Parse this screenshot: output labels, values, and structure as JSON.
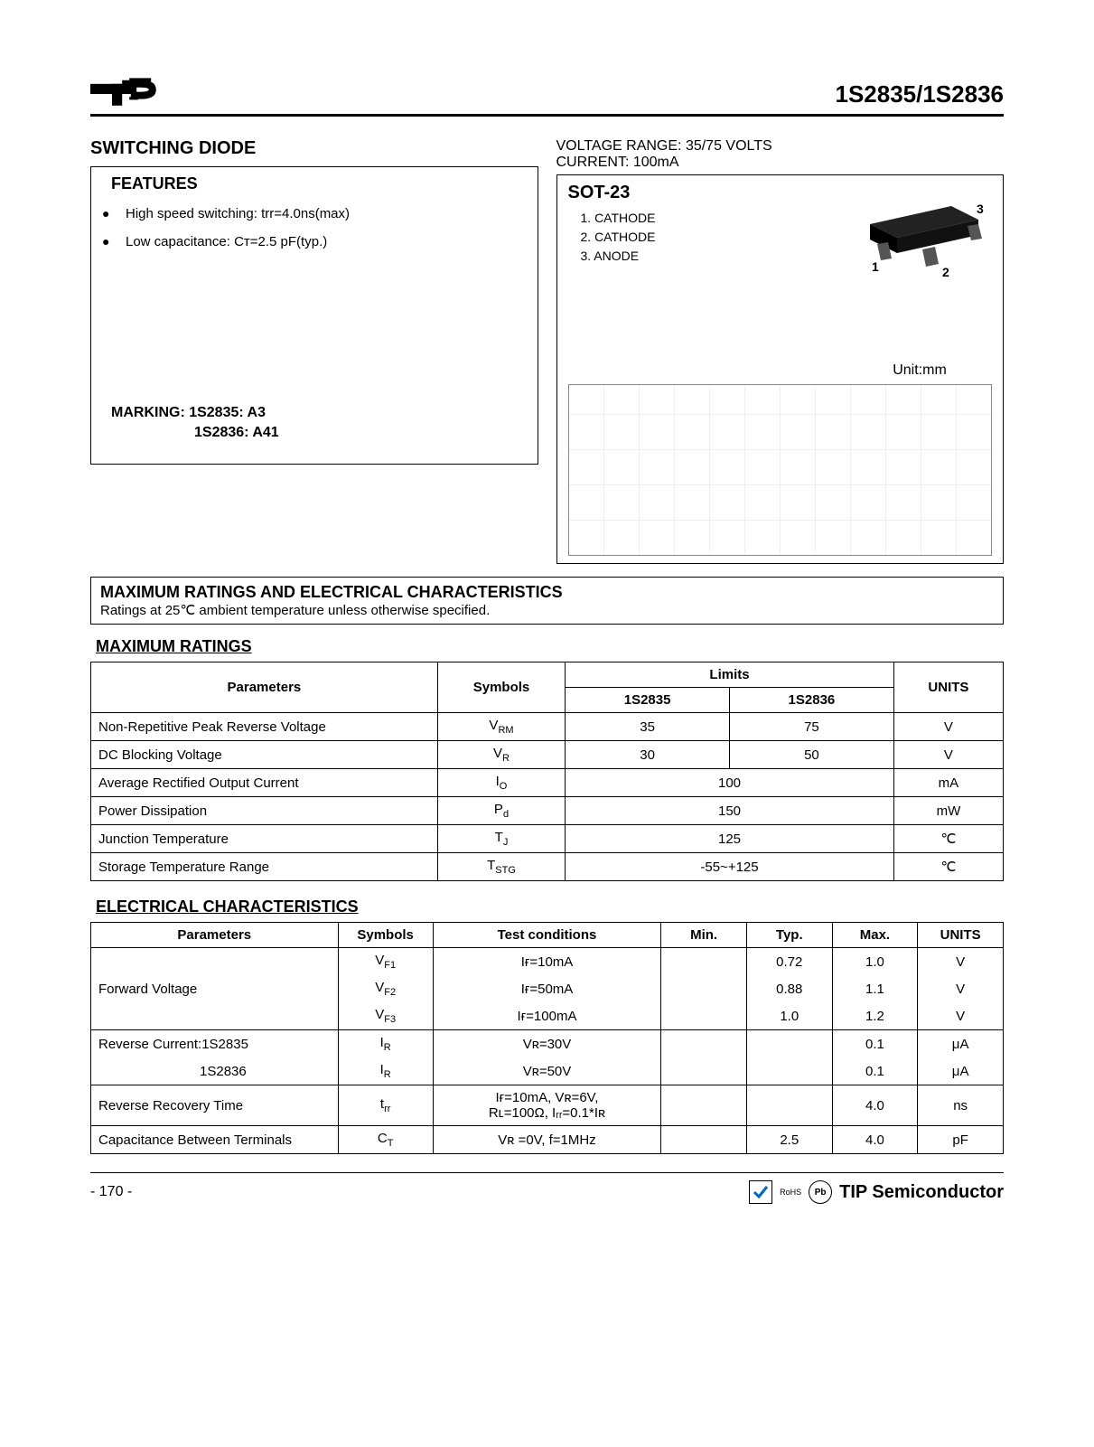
{
  "header": {
    "part_numbers": "1S2835/1S2836"
  },
  "top": {
    "title": "SWITCHING DIODE",
    "voltage_range": "VOLTAGE RANGE: 35/75 VOLTS",
    "current": "CURRENT: 100mA"
  },
  "features": {
    "heading": "FEATURES",
    "items": [
      "High speed switching: trr=4.0ns(max)",
      "Low capacitance: Cᴛ=2.5 pF(typ.)"
    ],
    "marking_label": "MARKING: 1S2835: A3",
    "marking_line2": "1S2836: A41"
  },
  "package": {
    "name": "SOT-23",
    "pins": [
      "1.  CATHODE",
      "2.  CATHODE",
      "3.  ANODE"
    ],
    "unit": "Unit:mm",
    "pin_labels": [
      "1",
      "2",
      "3"
    ]
  },
  "ratings_header": {
    "title": "MAXIMUM RATINGS AND ELECTRICAL CHARACTERISTICS",
    "subtitle": "Ratings at 25℃  ambient temperature unless otherwise specified."
  },
  "max_ratings": {
    "title": "MAXIMUM RATINGS",
    "columns": [
      "Parameters",
      "Symbols",
      "Limits",
      "UNITS"
    ],
    "limit_cols": [
      "1S2835",
      "1S2836"
    ],
    "rows": [
      {
        "param": "Non-Repetitive Peak Reverse Voltage",
        "symbol": "V",
        "sub": "RM",
        "v1": "35",
        "v2": "75",
        "unit": "V",
        "span": false
      },
      {
        "param": "DC Blocking Voltage",
        "symbol": "V",
        "sub": "R",
        "v1": "30",
        "v2": "50",
        "unit": "V",
        "span": false
      },
      {
        "param": "Average Rectified Output Current",
        "symbol": "I",
        "sub": "O",
        "v1": "100",
        "v2": "",
        "unit": "mA",
        "span": true
      },
      {
        "param": "Power Dissipation",
        "symbol": "P",
        "sub": "d",
        "v1": "150",
        "v2": "",
        "unit": "mW",
        "span": true
      },
      {
        "param": "Junction Temperature",
        "symbol": "T",
        "sub": "J",
        "v1": "125",
        "v2": "",
        "unit": "℃",
        "span": true
      },
      {
        "param": "Storage Temperature Range",
        "symbol": "T",
        "sub": "STG",
        "v1": "-55~+125",
        "v2": "",
        "unit": "℃",
        "span": true
      }
    ]
  },
  "elec": {
    "title": "ELECTRICAL CHARACTERISTICS",
    "columns": [
      "Parameters",
      "Symbols",
      "Test conditions",
      "Min.",
      "Typ.",
      "Max.",
      "UNITS"
    ],
    "fwd_label": "Forward Voltage",
    "fwd": [
      {
        "sym": "V",
        "sub": "F1",
        "cond": "Iғ=10mA",
        "min": "",
        "typ": "0.72",
        "max": "1.0",
        "unit": "V"
      },
      {
        "sym": "V",
        "sub": "F2",
        "cond": "Iғ=50mA",
        "min": "",
        "typ": "0.88",
        "max": "1.1",
        "unit": "V"
      },
      {
        "sym": "V",
        "sub": "F3",
        "cond": "Iғ=100mA",
        "min": "",
        "typ": "1.0",
        "max": "1.2",
        "unit": "V"
      }
    ],
    "rev_label1": "Reverse Current:1S2835",
    "rev_label2": "1S2836",
    "rev": [
      {
        "sym": "I",
        "sub": "R",
        "cond": "Vʀ=30V",
        "min": "",
        "typ": "",
        "max": "0.1",
        "unit": "μA"
      },
      {
        "sym": "I",
        "sub": "R",
        "cond": "Vʀ=50V",
        "min": "",
        "typ": "",
        "max": "0.1",
        "unit": "μA"
      }
    ],
    "trr": {
      "param": "Reverse Recovery Time",
      "sym": "t",
      "sub": "rr",
      "cond1": "Iғ=10mA, Vʀ=6V,",
      "cond2": "Rʟ=100Ω, Iᵣᵣ=0.1*Iʀ",
      "min": "",
      "typ": "",
      "max": "4.0",
      "unit": "ns"
    },
    "cap": {
      "param": "Capacitance Between Terminals",
      "sym": "C",
      "sub": "T",
      "cond": "Vʀ =0V, f=1MHz",
      "min": "",
      "typ": "2.5",
      "max": "4.0",
      "unit": "pF"
    }
  },
  "footer": {
    "page": "- 170 -",
    "rohs": "RoHS",
    "pb": "Pb",
    "brand": "TIP Semiconductor"
  }
}
